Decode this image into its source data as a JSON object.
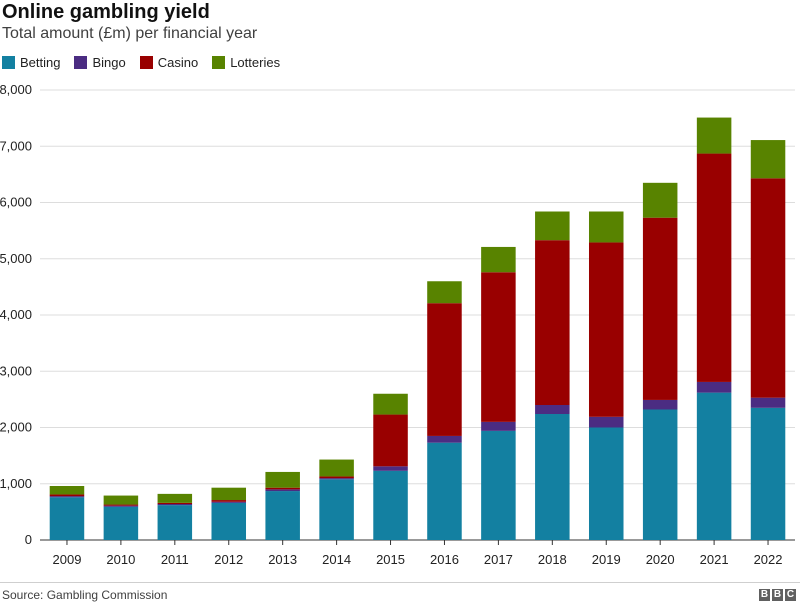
{
  "chart_data": {
    "type": "bar",
    "stacked": true,
    "title": "Online gambling yield",
    "subtitle": "Total amount (£m) per financial year",
    "xlabel": "",
    "ylabel": "",
    "ylim": [
      0,
      8000
    ],
    "yticks": [
      "0",
      "1,000",
      "2,000",
      "3,000",
      "4,000",
      "5,000",
      "6,000",
      "7,000",
      "8,000"
    ],
    "grid": true,
    "legend_position": "top-left",
    "categories": [
      "2009",
      "2010",
      "2011",
      "2012",
      "2013",
      "2014",
      "2015",
      "2016",
      "2017",
      "2018",
      "2019",
      "2020",
      "2021",
      "2022"
    ],
    "series": [
      {
        "name": "Betting",
        "color": "#1380A1",
        "values": [
          760,
          590,
          620,
          660,
          870,
          1080,
          1230,
          1730,
          1940,
          2240,
          2000,
          2320,
          2620,
          2350
        ]
      },
      {
        "name": "Bingo",
        "color": "#4B2C82",
        "values": [
          20,
          20,
          20,
          20,
          30,
          20,
          80,
          120,
          160,
          160,
          190,
          170,
          190,
          180
        ]
      },
      {
        "name": "Casino",
        "color": "#990000",
        "values": [
          30,
          20,
          20,
          30,
          30,
          30,
          920,
          2360,
          2660,
          2930,
          3100,
          3240,
          4060,
          3900
        ]
      },
      {
        "name": "Lotteries",
        "color": "#588300",
        "values": [
          150,
          160,
          160,
          220,
          280,
          300,
          370,
          390,
          450,
          510,
          550,
          620,
          640,
          680
        ]
      }
    ]
  },
  "footer": {
    "source": "Source: Gambling Commission",
    "logo": [
      "B",
      "B",
      "C"
    ]
  }
}
